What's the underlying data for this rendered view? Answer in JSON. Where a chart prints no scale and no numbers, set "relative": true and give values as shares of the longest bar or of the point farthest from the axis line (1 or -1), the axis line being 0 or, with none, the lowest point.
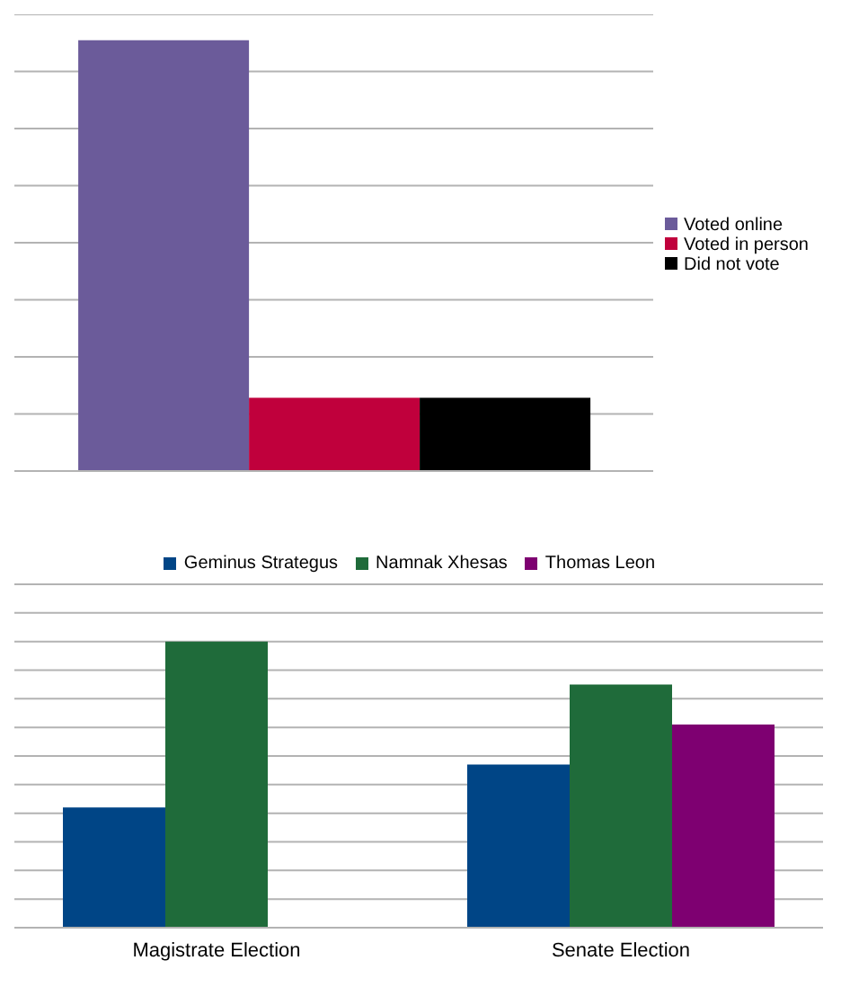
{
  "chart_data": [
    {
      "type": "bar",
      "relative": true,
      "categories": [
        null
      ],
      "series": [
        {
          "name": "Voted online",
          "color": "#6b5b9a",
          "values": [
            1
          ]
        },
        {
          "name": "Voted in person",
          "color": "#c0003c",
          "values": [
            0.17
          ]
        },
        {
          "name": "Did not vote",
          "color": "#000000",
          "values": [
            0.17
          ]
        }
      ],
      "legend": "right",
      "grid": "y",
      "tick_labels": false
    },
    {
      "type": "bar",
      "relative": true,
      "categories": [
        "Magistrate Election",
        "Senate Election"
      ],
      "series": [
        {
          "name": "Geminus Strategus",
          "color": "#004586",
          "values": [
            0.42,
            0.57
          ]
        },
        {
          "name": "Namnak Xhesas",
          "color": "#1f6b3a",
          "values": [
            1,
            0.85
          ]
        },
        {
          "name": "Thomas Leon",
          "color": "#7e0071",
          "values": [
            null,
            0.71
          ]
        }
      ],
      "legend": "top",
      "grid": "y",
      "tick_labels": "x"
    }
  ]
}
